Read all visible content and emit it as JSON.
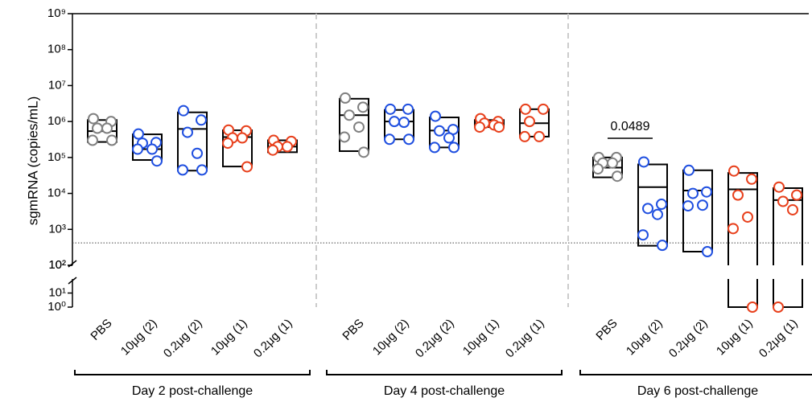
{
  "chart_data": {
    "type": "dotbox",
    "y_label": "sgmRNA (copies/mL)",
    "log_y": true,
    "ylim": [
      1,
      1000000000
    ],
    "y_segments": [
      [
        1,
        100
      ],
      [
        100,
        1000000000
      ]
    ],
    "yticks": [
      {
        "value": 100,
        "label": "10²"
      },
      {
        "value": 1000,
        "label": "10³"
      },
      {
        "value": 10000,
        "label": "10⁴"
      },
      {
        "value": 100000,
        "label": "10⁵"
      },
      {
        "value": 1000000,
        "label": "10⁶"
      },
      {
        "value": 10000000,
        "label": "10⁷"
      },
      {
        "value": 100000000,
        "label": "10⁸"
      },
      {
        "value": 1000000000,
        "label": "10⁹"
      }
    ],
    "yticks_lower": [
      {
        "value": 1,
        "label": "10⁰"
      },
      {
        "value": 10,
        "label": "10¹"
      },
      {
        "value": 100,
        "label": "10²"
      }
    ],
    "detection_limit": 420,
    "annotation": "0.0489",
    "groups": [
      {
        "label": "Day 2 post-challenge",
        "boxes": [
          {
            "category": "PBS",
            "color": "#808080",
            "values": [
              1200000,
              1000000,
              650000,
              650000,
              300000,
              300000
            ],
            "low": 270000,
            "median": 540000,
            "high": 1100000
          },
          {
            "category": "10μg (2)",
            "color": "#1f4fe0",
            "values": [
              450000,
              260000,
              250000,
              170000,
              170000,
              80000
            ],
            "low": 85000,
            "median": 170000,
            "high": 440000
          },
          {
            "category": "0.2μg (2)",
            "color": "#1f4fe0",
            "values": [
              2000000,
              1100000,
              500000,
              130000,
              45000,
              45000
            ],
            "low": 43000,
            "median": 620000,
            "high": 1800000
          },
          {
            "category": "10μg (1)",
            "color": "#e8401c",
            "values": [
              580000,
              550000,
              350000,
              350000,
              250000,
              55000
            ],
            "low": 56000,
            "median": 370000,
            "high": 570000
          },
          {
            "category": "0.2μg (1)",
            "color": "#e8401c",
            "values": [
              300000,
              280000,
              200000,
              200000,
              160000
            ],
            "low": 140000,
            "median": 200000,
            "high": 300000
          }
        ]
      },
      {
        "label": "Day 4 post-challenge",
        "boxes": [
          {
            "category": "PBS",
            "color": "#808080",
            "values": [
              4500000,
              2500000,
              1500000,
              700000,
              370000,
              140000
            ],
            "low": 150000,
            "median": 1500000,
            "high": 4300000
          },
          {
            "category": "10μg (2)",
            "color": "#1f4fe0",
            "values": [
              2200000,
              2200000,
              1000000,
              950000,
              320000,
              320000
            ],
            "low": 320000,
            "median": 1000000,
            "high": 2100000
          },
          {
            "category": "0.2μg (2)",
            "color": "#1f4fe0",
            "values": [
              1400000,
              600000,
              550000,
              350000,
              190000,
              190000
            ],
            "low": 190000,
            "median": 560000,
            "high": 1300000
          },
          {
            "category": "10μg (1)",
            "color": "#e8401c",
            "values": [
              1200000,
              1000000,
              900000,
              800000,
              700000,
              700000
            ],
            "low": 700000,
            "median": 880000,
            "high": 1100000
          },
          {
            "category": "0.2μg (1)",
            "color": "#e8401c",
            "values": [
              2200000,
              2200000,
              1000000,
              380000,
              380000
            ],
            "low": 380000,
            "median": 900000,
            "high": 2200000
          }
        ]
      },
      {
        "label": "Day 6 post-challenge",
        "boxes": [
          {
            "category": "PBS",
            "color": "#808080",
            "values": [
              100000,
              100000,
              70000,
              70000,
              48000,
              30000
            ],
            "low": 28000,
            "median": 52000,
            "high": 100000
          },
          {
            "category": "10μg (2)",
            "color": "#1f4fe0",
            "values": [
              75000,
              5000,
              3800,
              2600,
              700,
              360
            ],
            "low": 350,
            "median": 15000,
            "high": 64000
          },
          {
            "category": "0.2μg (2)",
            "color": "#1f4fe0",
            "values": [
              44000,
              11000,
              10000,
              4700,
              4500,
              240
            ],
            "low": 240,
            "median": 12000,
            "high": 44000
          },
          {
            "category": "10μg (1)",
            "color": "#e8401c",
            "values": [
              42000,
              25000,
              9000,
              2200,
              1050,
              1
            ],
            "low": 1,
            "median": 13000,
            "high": 37000
          },
          {
            "category": "0.2μg (1)",
            "color": "#e8401c",
            "values": [
              15000,
              9000,
              6000,
              3500,
              1
            ],
            "low": 1,
            "median": 6500,
            "high": 14000
          }
        ]
      }
    ]
  }
}
